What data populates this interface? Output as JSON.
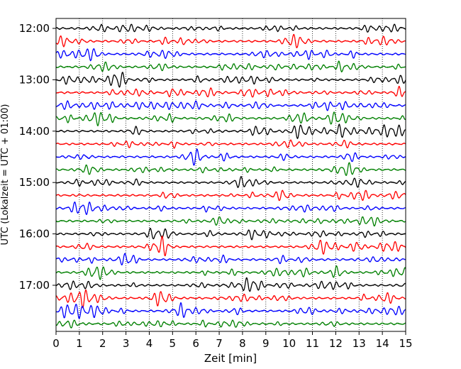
{
  "chart_data": {
    "type": "line",
    "title": "",
    "xlabel": "Zeit  [min]",
    "ylabel": "UTC (Lokalzeit = UTC + 01:00)",
    "xlim": [
      0,
      15
    ],
    "x_ticks": [
      "0",
      "1",
      "2",
      "3",
      "4",
      "5",
      "6",
      "7",
      "8",
      "9",
      "10",
      "11",
      "12",
      "13",
      "14",
      "15"
    ],
    "y_ticks": [
      "12:00",
      "13:00",
      "14:00",
      "15:00",
      "16:00",
      "17:00"
    ],
    "grid": "vertical dotted",
    "colors": [
      "#000000",
      "#ff0000",
      "#0000ff",
      "#008000"
    ],
    "traces": [
      {
        "start": "12:00",
        "color": "#000000"
      },
      {
        "start": "12:15",
        "color": "#ff0000"
      },
      {
        "start": "12:30",
        "color": "#0000ff"
      },
      {
        "start": "12:45",
        "color": "#008000"
      },
      {
        "start": "13:00",
        "color": "#000000"
      },
      {
        "start": "13:15",
        "color": "#ff0000"
      },
      {
        "start": "13:30",
        "color": "#0000ff"
      },
      {
        "start": "13:45",
        "color": "#008000"
      },
      {
        "start": "14:00",
        "color": "#000000"
      },
      {
        "start": "14:15",
        "color": "#ff0000"
      },
      {
        "start": "14:30",
        "color": "#0000ff"
      },
      {
        "start": "14:45",
        "color": "#008000"
      },
      {
        "start": "15:00",
        "color": "#000000"
      },
      {
        "start": "15:15",
        "color": "#ff0000"
      },
      {
        "start": "15:30",
        "color": "#0000ff"
      },
      {
        "start": "15:45",
        "color": "#008000"
      },
      {
        "start": "16:00",
        "color": "#000000"
      },
      {
        "start": "16:15",
        "color": "#ff0000"
      },
      {
        "start": "16:30",
        "color": "#0000ff"
      },
      {
        "start": "16:45",
        "color": "#008000"
      },
      {
        "start": "17:00",
        "color": "#000000"
      },
      {
        "start": "17:15",
        "color": "#ff0000"
      },
      {
        "start": "17:30",
        "color": "#0000ff"
      },
      {
        "start": "17:45",
        "color": "#008000"
      }
    ]
  }
}
